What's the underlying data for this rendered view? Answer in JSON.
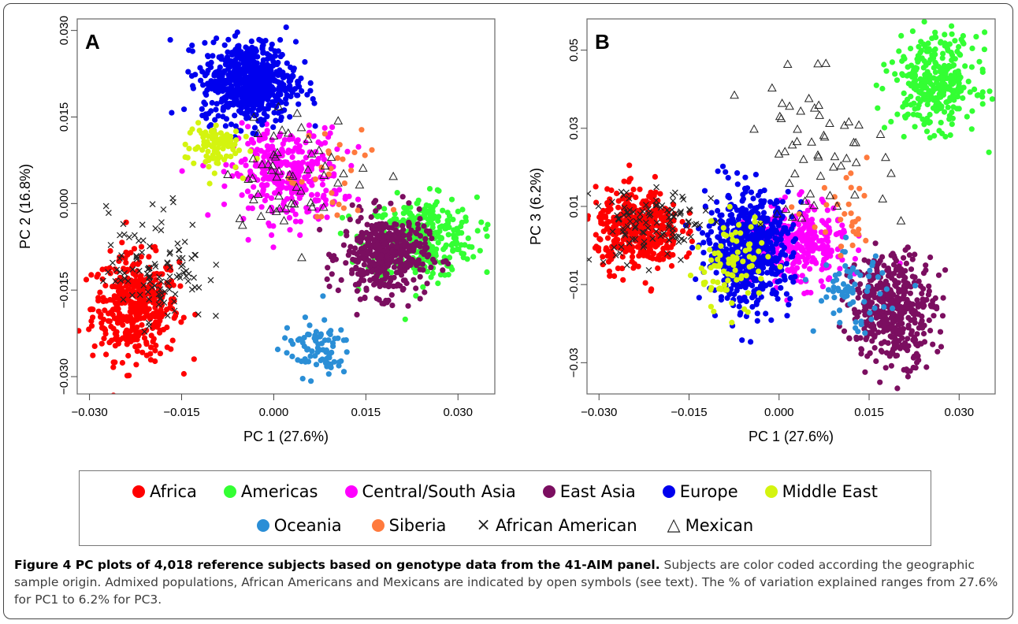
{
  "chart_data": [
    {
      "type": "scatter",
      "panel": "A",
      "xlabel": "PC 1 (27.6%)",
      "ylabel": "PC 2 (16.8%)",
      "xlim": [
        -0.032,
        0.036
      ],
      "ylim": [
        -0.033,
        0.032
      ],
      "xticks": [
        -0.03,
        -0.015,
        0.0,
        0.015,
        0.03
      ],
      "xtick_labels": [
        "−0.030",
        "−0.015",
        "0.000",
        "0.015",
        "0.030"
      ],
      "yticks": [
        -0.03,
        -0.015,
        0.0,
        0.015,
        0.03
      ],
      "ytick_labels": [
        "−0.030",
        "−0.015",
        "0.000",
        "0.015",
        "0.030"
      ],
      "series": [
        {
          "name": "Africa",
          "color": "#ff0000",
          "marker": "filled-circle",
          "cx": -0.0225,
          "cy": -0.018,
          "sx": 0.0035,
          "sy": 0.0045,
          "n": 420
        },
        {
          "name": "Americas",
          "color": "#33ff33",
          "marker": "filled-circle",
          "cx": 0.024,
          "cy": -0.006,
          "sx": 0.0045,
          "sy": 0.0035,
          "n": 340
        },
        {
          "name": "Central/South Asia",
          "color": "#ff00ff",
          "marker": "filled-circle",
          "cx": 0.002,
          "cy": 0.005,
          "sx": 0.0045,
          "sy": 0.004,
          "n": 330
        },
        {
          "name": "East Asia",
          "color": "#7b0e60",
          "marker": "filled-circle",
          "cx": 0.018,
          "cy": -0.009,
          "sx": 0.0035,
          "sy": 0.0035,
          "n": 420
        },
        {
          "name": "Europe",
          "color": "#0000ee",
          "marker": "filled-circle",
          "cx": -0.004,
          "cy": 0.021,
          "sx": 0.0038,
          "sy": 0.0035,
          "n": 620
        },
        {
          "name": "Middle East",
          "color": "#d4f40f",
          "marker": "filled-circle",
          "cx": -0.01,
          "cy": 0.01,
          "sx": 0.0022,
          "sy": 0.0022,
          "n": 90
        },
        {
          "name": "Oceania",
          "color": "#2a8ed6",
          "marker": "filled-circle",
          "cx": 0.007,
          "cy": -0.025,
          "sx": 0.0028,
          "sy": 0.0025,
          "n": 80
        },
        {
          "name": "Siberia",
          "color": "#ff7a3d",
          "marker": "filled-circle",
          "cx": 0.01,
          "cy": 0.003,
          "sx": 0.004,
          "sy": 0.005,
          "n": 30
        },
        {
          "name": "African American",
          "color": "#222222",
          "marker": "x",
          "cx": -0.019,
          "cy": -0.011,
          "sx": 0.004,
          "sy": 0.005,
          "n": 110
        },
        {
          "name": "Mexican",
          "color": "#222222",
          "marker": "open-triangle",
          "cx": 0.004,
          "cy": 0.006,
          "sx": 0.006,
          "sy": 0.005,
          "n": 55
        }
      ]
    },
    {
      "type": "scatter",
      "panel": "B",
      "xlabel": "PC 1 (27.6%)",
      "ylabel": "PC 3 (6.2%)",
      "xlim": [
        -0.032,
        0.036
      ],
      "ylim": [
        -0.038,
        0.058
      ],
      "xticks": [
        -0.03,
        -0.015,
        0.0,
        0.015,
        0.03
      ],
      "xtick_labels": [
        "−0.030",
        "−0.015",
        "0.000",
        "0.015",
        "0.030"
      ],
      "yticks": [
        -0.03,
        -0.01,
        0.01,
        0.03,
        0.05
      ],
      "ytick_labels": [
        "−0.03",
        "−0.01",
        "0.01",
        "0.03",
        "0.05"
      ],
      "series": [
        {
          "name": "Africa",
          "color": "#ff0000",
          "marker": "filled-circle",
          "cx": -0.0235,
          "cy": 0.004,
          "sx": 0.0035,
          "sy": 0.005,
          "n": 420
        },
        {
          "name": "Americas",
          "color": "#33ff33",
          "marker": "filled-circle",
          "cx": 0.026,
          "cy": 0.042,
          "sx": 0.0035,
          "sy": 0.006,
          "n": 330
        },
        {
          "name": "Central/South Asia",
          "color": "#ff00ff",
          "marker": "filled-circle",
          "cx": 0.003,
          "cy": 0.0,
          "sx": 0.004,
          "sy": 0.005,
          "n": 330
        },
        {
          "name": "East Asia",
          "color": "#7b0e60",
          "marker": "filled-circle",
          "cx": 0.019,
          "cy": -0.016,
          "sx": 0.0035,
          "sy": 0.007,
          "n": 430
        },
        {
          "name": "Europe",
          "color": "#0000ee",
          "marker": "filled-circle",
          "cx": -0.005,
          "cy": -0.001,
          "sx": 0.0035,
          "sy": 0.007,
          "n": 620
        },
        {
          "name": "Middle East",
          "color": "#d4f40f",
          "marker": "filled-circle",
          "cx": -0.008,
          "cy": -0.005,
          "sx": 0.003,
          "sy": 0.006,
          "n": 90
        },
        {
          "name": "Oceania",
          "color": "#2a8ed6",
          "marker": "filled-circle",
          "cx": 0.012,
          "cy": -0.012,
          "sx": 0.003,
          "sy": 0.005,
          "n": 70
        },
        {
          "name": "Siberia",
          "color": "#ff7a3d",
          "marker": "filled-circle",
          "cx": 0.011,
          "cy": 0.006,
          "sx": 0.003,
          "sy": 0.005,
          "n": 30
        },
        {
          "name": "African American",
          "color": "#222222",
          "marker": "x",
          "cx": -0.021,
          "cy": 0.005,
          "sx": 0.005,
          "sy": 0.005,
          "n": 110
        },
        {
          "name": "Mexican",
          "color": "#222222",
          "marker": "open-triangle",
          "cx": 0.006,
          "cy": 0.025,
          "sx": 0.006,
          "sy": 0.009,
          "n": 55
        }
      ]
    }
  ],
  "legend": {
    "row1": [
      {
        "label": "Africa",
        "color": "#ff0000",
        "symbol": "filled-circle"
      },
      {
        "label": "Americas",
        "color": "#33ff33",
        "symbol": "filled-circle"
      },
      {
        "label": "Central/South  Asia",
        "color": "#ff00ff",
        "symbol": "filled-circle"
      },
      {
        "label": "East Asia",
        "color": "#7b0e60",
        "symbol": "filled-circle"
      },
      {
        "label": "Europe",
        "color": "#0000ee",
        "symbol": "filled-circle"
      },
      {
        "label": "Middle East",
        "color": "#d4f40f",
        "symbol": "filled-circle"
      }
    ],
    "row2": [
      {
        "label": "Oceania",
        "color": "#2a8ed6",
        "symbol": "filled-circle"
      },
      {
        "label": "Siberia",
        "color": "#ff7a3d",
        "symbol": "filled-circle"
      },
      {
        "label": "African American",
        "color": "#222222",
        "symbol": "×"
      },
      {
        "label": "Mexican",
        "color": "#222222",
        "symbol": "△"
      }
    ]
  },
  "caption": {
    "lead": "Figure 4 PC plots of 4,018 reference subjects based on genotype data from the 41-AIM panel.",
    "body": " Subjects are color coded according the geographic sample origin. Admixed populations, African Americans and Mexicans are indicated by open symbols (see text). The % of variation explained ranges from 27.6% for PC1 to 6.2% for PC3."
  }
}
